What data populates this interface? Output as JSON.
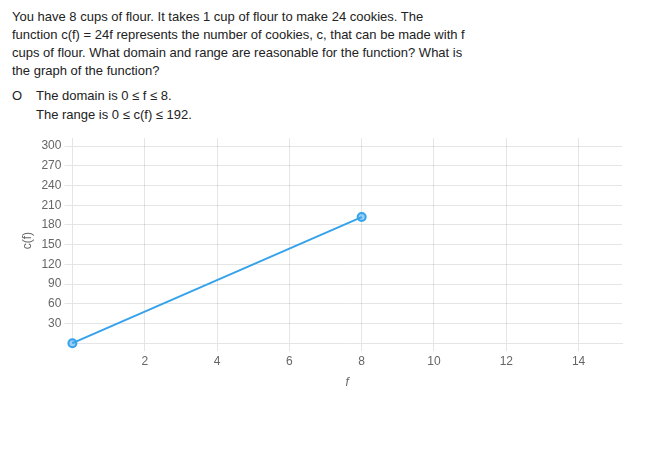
{
  "chart_data": {
    "type": "line",
    "title": [
      "You have 8 cups of flour. It takes 1 cup of flour to make 24 cookies. The",
      "function c(f) = 24f represents the number of cookies, c, that can be made with f",
      "cups of flour. What domain and range are reasonable for the function? What is",
      "the graph of the function?"
    ],
    "annotations": [
      "O",
      "The domain is 0 ≤ f ≤ 8.",
      "The range is 0 ≤ c(f) ≤ 192."
    ],
    "xlabel": "f",
    "ylabel": "c(f)",
    "x": [
      0,
      8
    ],
    "values": [
      0,
      192
    ],
    "marker": "circle",
    "xlim": [
      0,
      15.2
    ],
    "xticks": [
      2,
      4,
      6,
      8,
      10,
      12,
      14
    ],
    "ylim": [
      0,
      312
    ],
    "yticks": [
      30,
      60,
      90,
      120,
      150,
      180,
      210,
      240,
      270,
      300
    ],
    "grid": true
  }
}
